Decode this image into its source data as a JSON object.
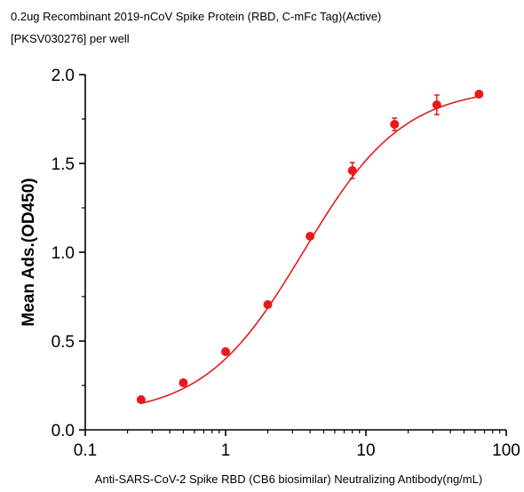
{
  "chart_data": {
    "type": "scatter",
    "title": "0.2ug Recombinant 2019-nCoV Spike Protein (RBD, C-mFc Tag)(Active)",
    "subtitle": "[PKSV030276] per well",
    "xlabel": "Anti-SARS-CoV-2 Spike RBD (CB6 biosimilar)  Neutralizing Antibody(ng/mL)",
    "ylabel": "Mean Ads.(OD450)",
    "xscale": "log",
    "xlim": [
      0.1,
      100
    ],
    "ylim": [
      0,
      2.0
    ],
    "xticks": [
      "0.1",
      "1",
      "10",
      "100"
    ],
    "yticks": [
      "0.0",
      "0.5",
      "1.0",
      "1.5",
      "2.0"
    ],
    "grid": false,
    "color": "#e8191b",
    "series": [
      {
        "x": [
          0.25,
          0.5,
          1,
          2,
          4,
          8,
          16,
          32,
          64
        ],
        "y": [
          0.17,
          0.265,
          0.44,
          0.705,
          1.09,
          1.46,
          1.72,
          1.83,
          1.89
        ],
        "err": [
          0.01,
          0.01,
          0.01,
          0.01,
          0.015,
          0.045,
          0.035,
          0.055,
          0.01
        ]
      }
    ],
    "fit": {
      "model": "4PL",
      "bottom": 0.08,
      "top": 1.93,
      "ec50": 3.6,
      "hill": 1.22
    }
  }
}
